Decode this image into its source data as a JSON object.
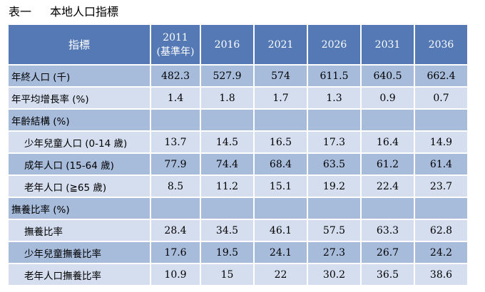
{
  "caption": {
    "number": "表一",
    "title": "本地人口指標"
  },
  "table": {
    "header": {
      "label": "指標",
      "years": [
        {
          "year": "2011",
          "note": "(基準年)"
        },
        {
          "year": "2016",
          "note": ""
        },
        {
          "year": "2021",
          "note": ""
        },
        {
          "year": "2026",
          "note": ""
        },
        {
          "year": "2031",
          "note": ""
        },
        {
          "year": "2036",
          "note": ""
        }
      ]
    },
    "rows": [
      {
        "label": "年終人口 (千)",
        "values": [
          "482.3",
          "527.9",
          "574",
          "611.5",
          "640.5",
          "662.4"
        ]
      },
      {
        "label": "年平均增長率 (%)",
        "values": [
          "1.4",
          "1.8",
          "1.7",
          "1.3",
          "0.9",
          "0.7"
        ]
      },
      {
        "label": "年齡結構 (%)",
        "values": [
          "",
          "",
          "",
          "",
          "",
          ""
        ]
      },
      {
        "label": "少年兒童人口 (0-14 歲)",
        "values": [
          "13.7",
          "14.5",
          "16.5",
          "17.3",
          "16.4",
          "14.9"
        ]
      },
      {
        "label": "成年人口 (15-64 歲)",
        "values": [
          "77.9",
          "74.4",
          "68.4",
          "63.5",
          "61.2",
          "61.4"
        ]
      },
      {
        "label": "老年人口 (≧65 歲)",
        "values": [
          "8.5",
          "11.2",
          "15.1",
          "19.2",
          "22.4",
          "23.7"
        ]
      },
      {
        "label": "撫養比率 (%)",
        "values": [
          "",
          "",
          "",
          "",
          "",
          ""
        ]
      },
      {
        "label": "撫養比率",
        "values": [
          "28.4",
          "34.5",
          "46.1",
          "57.5",
          "63.3",
          "62.8"
        ]
      },
      {
        "label": "少年兒童撫養比率",
        "values": [
          "17.6",
          "19.5",
          "24.1",
          "27.3",
          "26.7",
          "24.2"
        ]
      },
      {
        "label": "老年人口撫養比率",
        "values": [
          "10.9",
          "15",
          "22",
          "30.2",
          "36.5",
          "38.6"
        ]
      }
    ]
  }
}
